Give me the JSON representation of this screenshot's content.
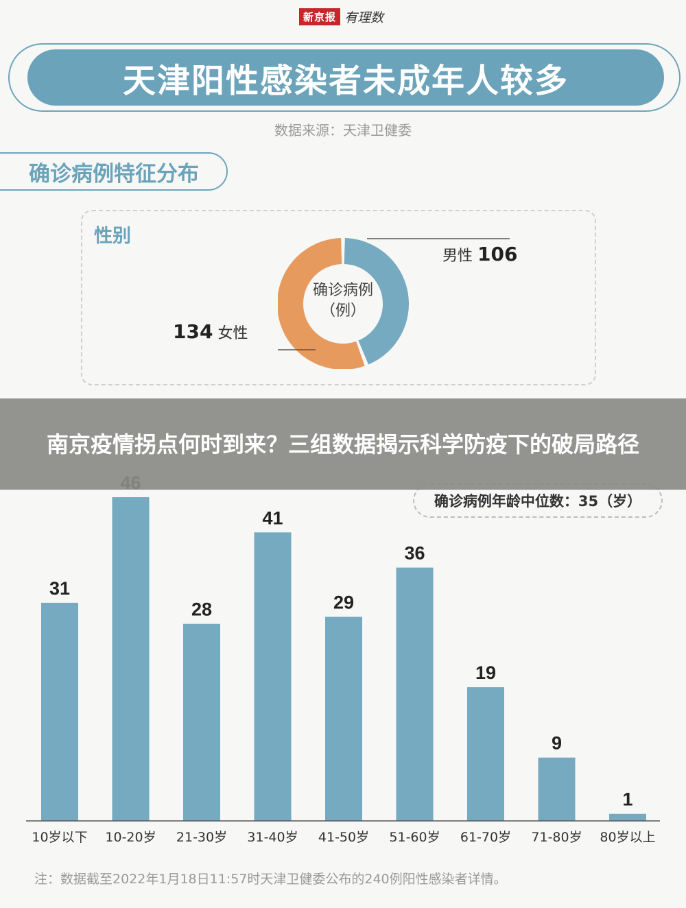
{
  "logo": {
    "brand": "新京报",
    "sub": "有理数"
  },
  "header": {
    "title": "天津阳性感染者未成年人较多",
    "source": "数据来源：天津卫健委"
  },
  "section": {
    "title": "确诊病例特征分布"
  },
  "gender": {
    "label": "性别",
    "center_line1": "确诊病例",
    "center_line2": "（例）",
    "male_label": "男性",
    "male_value": "106",
    "female_label": "女性",
    "female_value": "134",
    "colors": {
      "male": "#76aac0",
      "female": "#e79a5e"
    }
  },
  "overlay": {
    "text": "南京疫情拐点何时到来？三组数据揭示科学防疫下的破局路径"
  },
  "age": {
    "median_text": "确诊病例年龄中位数：35（岁）"
  },
  "chart_data": {
    "type": "bar",
    "categories": [
      "10岁以下",
      "10-20岁",
      "21-30岁",
      "31-40岁",
      "41-50岁",
      "51-60岁",
      "61-70岁",
      "71-80岁",
      "80岁以上"
    ],
    "values": [
      31,
      46,
      28,
      41,
      29,
      36,
      19,
      9,
      1
    ],
    "ylim": [
      0,
      46
    ],
    "bar_color": "#76aac0"
  },
  "footnote": "注：数据截至2022年1月18日11:57时天津卫健委公布的240例阳性感染者详情。"
}
